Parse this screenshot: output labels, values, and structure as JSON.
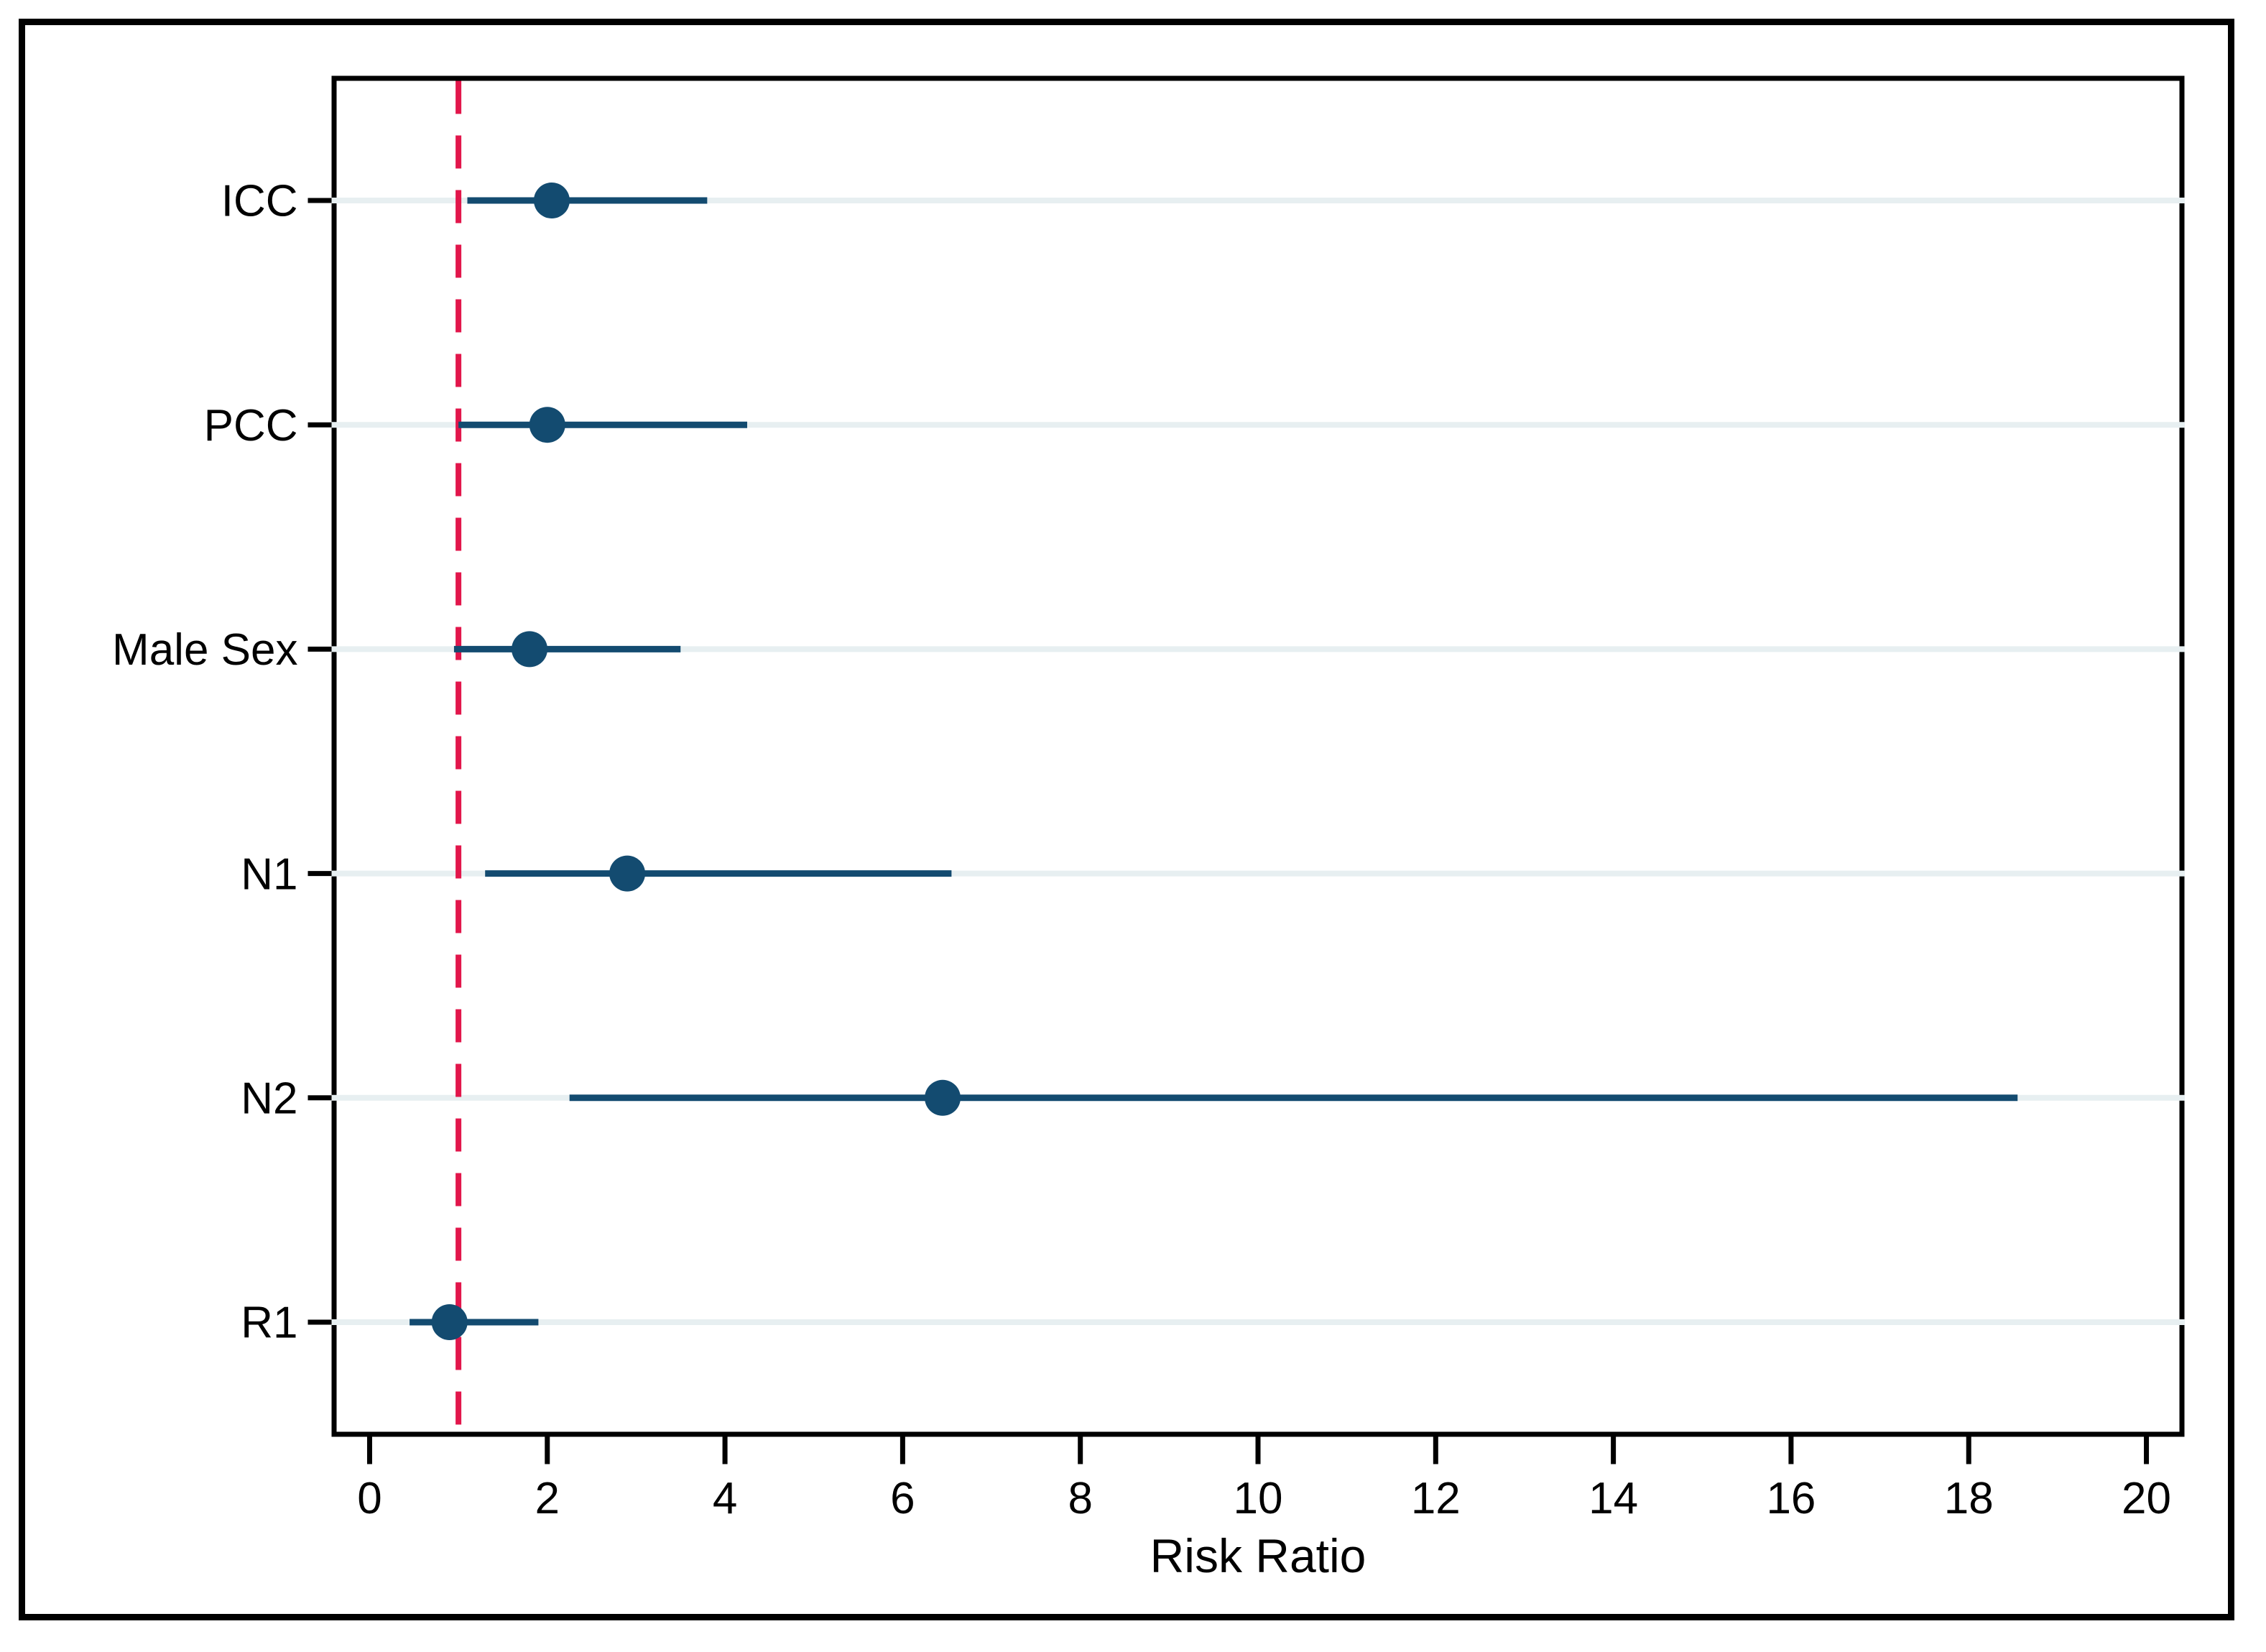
{
  "figure": {
    "background": "#ffffff",
    "outer_border_color": "#000000",
    "plot_border_color": "#000000"
  },
  "chart_data": {
    "type": "scatter",
    "subtype": "forest-plot",
    "title": "",
    "xlabel": "Risk Ratio",
    "ylabel": "",
    "categories": [
      "ICC",
      "PCC",
      "Male Sex",
      "N1",
      "N2",
      "R1"
    ],
    "series": [
      {
        "name": "Risk Ratio point estimate",
        "values": [
          2.05,
          2.0,
          1.8,
          2.9,
          6.45,
          0.9
        ],
        "ci_low": [
          1.1,
          1.0,
          0.95,
          1.3,
          2.25,
          0.45
        ],
        "ci_high": [
          3.8,
          4.25,
          3.5,
          6.55,
          18.55,
          1.9
        ]
      }
    ],
    "reference_line_x": 1.0,
    "xlim": [
      -0.4,
      20.4
    ],
    "xticks": [
      0,
      2,
      4,
      6,
      8,
      10,
      12,
      14,
      16,
      18,
      20
    ],
    "xtick_labels": [
      "0",
      "2",
      "4",
      "6",
      "8",
      "10",
      "12",
      "14",
      "16",
      "18",
      "20"
    ],
    "grid": "horizontal-per-category",
    "legend_position": "none",
    "colors": {
      "point": "#134b70",
      "ci_line": "#134b70",
      "reference_line": "#e2164b",
      "gridline": "#e7eff1",
      "axis": "#000000",
      "text": "#000000"
    }
  }
}
